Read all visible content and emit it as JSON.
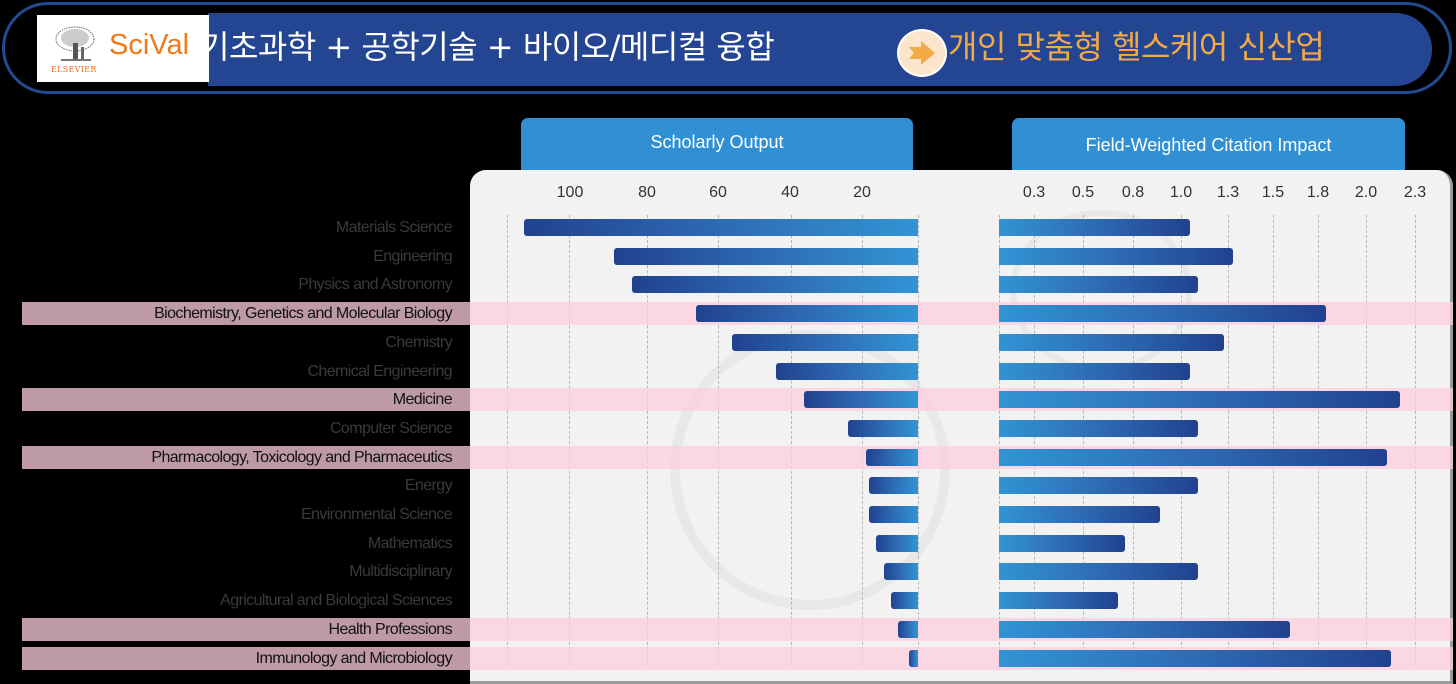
{
  "banner": {
    "logo_publisher": "ELSEVIER",
    "logo_product": "SciVal",
    "title_left": "기초과학 + 공학기술 + 바이오/메디컬 융합",
    "arrow_icon": "right-arrow-icon",
    "title_right": "개인 맞춤형 헬스케어 신산업",
    "colors": {
      "banner_bg": "#244591",
      "title_left": "#ffffff",
      "title_right": "#f2a946",
      "logo_orange": "#f07a1a"
    }
  },
  "colors": {
    "highlight_row": "#fccddc",
    "bar_dark": "#21428e",
    "bar_light": "#3194d4",
    "header_tab": "#318fd3"
  },
  "chart_data": [
    {
      "type": "bar",
      "orientation": "horizontal",
      "title": "Scholarly Output",
      "direction": "right-to-left",
      "xlabel": "",
      "ylabel": "",
      "ticks": [
        "100",
        "80",
        "60",
        "40",
        "20"
      ],
      "xlim": [
        0,
        120
      ],
      "grid": true,
      "categories": [
        "Materials Science",
        "Engineering",
        "Physics and Astronomy",
        "Biochemistry, Genetics and Molecular Biology",
        "Chemistry",
        "Chemical Engineering",
        "Medicine",
        "Computer Science",
        "Pharmacology, Toxicology and Pharmaceutics",
        "Energy",
        "Environmental Science",
        "Mathematics",
        "Multidisciplinary",
        "Agricultural and Biological Sciences",
        "Health Professions",
        "Immunology and Microbiology"
      ],
      "values": [
        114,
        89,
        84,
        66,
        56,
        44,
        36,
        24,
        19,
        18,
        18,
        16,
        14,
        12,
        10,
        7
      ]
    },
    {
      "type": "bar",
      "orientation": "horizontal",
      "title": "Field-Weighted  Citation  Impact",
      "direction": "left-to-right",
      "xlabel": "",
      "ylabel": "",
      "ticks": [
        "0.3",
        "0.5",
        "0.8",
        "1.0",
        "1.3",
        "1.5",
        "1.8",
        "2.0",
        "2.3"
      ],
      "xlim": [
        0,
        2.3
      ],
      "grid": true,
      "categories": [
        "Materials Science",
        "Engineering",
        "Physics and Astronomy",
        "Biochemistry, Genetics and Molecular Biology",
        "Chemistry",
        "Chemical Engineering",
        "Medicine",
        "Computer Science",
        "Pharmacology, Toxicology and Pharmaceutics",
        "Energy",
        "Environmental Science",
        "Mathematics",
        "Multidisciplinary",
        "Agricultural and Biological Sciences",
        "Health Professions",
        "Immunology and Microbiology"
      ],
      "values": [
        1.03,
        1.26,
        1.07,
        1.76,
        1.21,
        1.03,
        2.16,
        1.07,
        2.09,
        1.07,
        0.87,
        0.68,
        1.07,
        0.64,
        1.57,
        2.11
      ]
    }
  ],
  "rows": [
    {
      "label": "Materials Science",
      "highlight": false
    },
    {
      "label": "Engineering",
      "highlight": false
    },
    {
      "label": "Physics and Astronomy",
      "highlight": false
    },
    {
      "label": "Biochemistry, Genetics and Molecular Biology",
      "highlight": true
    },
    {
      "label": "Chemistry",
      "highlight": false
    },
    {
      "label": "Chemical Engineering",
      "highlight": false
    },
    {
      "label": "Medicine",
      "highlight": true
    },
    {
      "label": "Computer Science",
      "highlight": false
    },
    {
      "label": "Pharmacology, Toxicology and Pharmaceutics",
      "highlight": true
    },
    {
      "label": "Energy",
      "highlight": false
    },
    {
      "label": "Environmental Science",
      "highlight": false
    },
    {
      "label": "Mathematics",
      "highlight": false
    },
    {
      "label": "Multidisciplinary",
      "highlight": false
    },
    {
      "label": "Agricultural and Biological Sciences",
      "highlight": false
    },
    {
      "label": "Health Professions",
      "highlight": true
    },
    {
      "label": "Immunology and Microbiology",
      "highlight": true
    }
  ]
}
